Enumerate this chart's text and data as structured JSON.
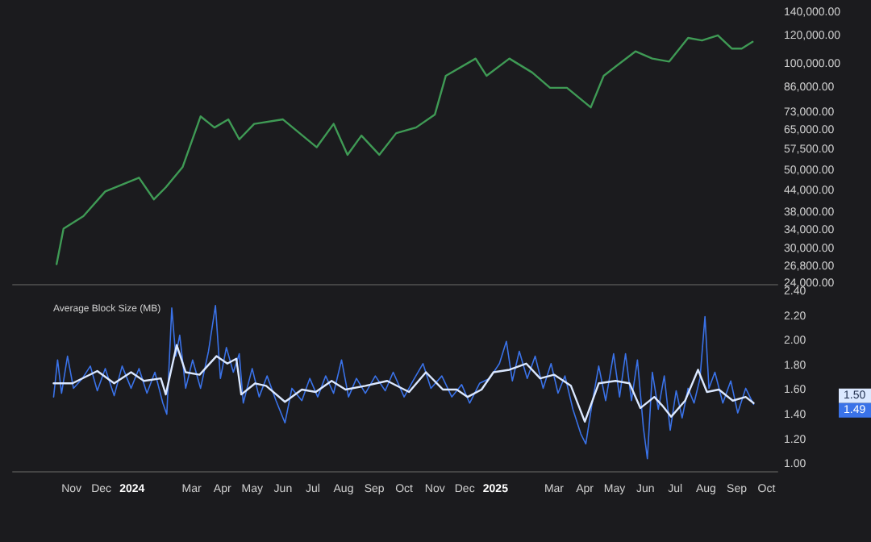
{
  "chart_data": [
    {
      "type": "line",
      "xlim": [
        "2023-09-03",
        "2025-10-12"
      ],
      "ylim": [
        24000,
        140000
      ],
      "log": "y",
      "tick_labels": "y",
      "grid": false,
      "yticks": [
        {
          "value": 140000,
          "label": "140,000.00"
        },
        {
          "value": 120000,
          "label": "120,000.00"
        },
        {
          "value": 100000,
          "label": "100,000.00"
        },
        {
          "value": 86000,
          "label": "86,000.00"
        },
        {
          "value": 73000,
          "label": "73,000.00"
        },
        {
          "value": 65000,
          "label": "65,000.00"
        },
        {
          "value": 57500,
          "label": "57,500.00"
        },
        {
          "value": 50000,
          "label": "50,000.00"
        },
        {
          "value": 44000,
          "label": "44,000.00"
        },
        {
          "value": 38000,
          "label": "38,000.00"
        },
        {
          "value": 34000,
          "label": "34,000.00"
        },
        {
          "value": 30000,
          "label": "30,000.00"
        },
        {
          "value": 26800,
          "label": "26,800.00"
        },
        {
          "value": 24000,
          "label": "24,000.00"
        }
      ],
      "series": [
        {
          "color": "#3f9a55",
          "x": [
            "2023-10-17",
            "2023-10-24",
            "2023-11-13",
            "2023-12-05",
            "2024-01-08",
            "2024-01-23",
            "2024-02-04",
            "2024-02-21",
            "2024-03-10",
            "2024-03-24",
            "2024-04-07",
            "2024-04-18",
            "2024-05-03",
            "2024-06-01",
            "2024-07-05",
            "2024-07-22",
            "2024-08-05",
            "2024-08-19",
            "2024-09-06",
            "2024-09-23",
            "2024-10-13",
            "2024-11-01",
            "2024-11-12",
            "2024-12-12",
            "2024-12-23",
            "2025-01-15",
            "2025-02-07",
            "2025-02-25",
            "2025-03-14",
            "2025-04-07",
            "2025-04-20",
            "2025-05-22",
            "2025-06-08",
            "2025-06-25",
            "2025-07-14",
            "2025-07-28",
            "2025-08-13",
            "2025-08-27",
            "2025-09-06",
            "2025-09-17"
          ],
          "values": [
            27300,
            34400,
            37300,
            43800,
            47900,
            41600,
            45000,
            51400,
            71400,
            66400,
            70000,
            61500,
            68000,
            70000,
            58400,
            68000,
            55600,
            63000,
            55600,
            64000,
            66400,
            72300,
            93000,
            104000,
            93000,
            104000,
            95000,
            86000,
            86000,
            75700,
            93000,
            109000,
            104000,
            102000,
            119000,
            117000,
            121000,
            111000,
            111000,
            116000
          ]
        }
      ]
    },
    {
      "type": "line",
      "title": "Average Block Size (MB)",
      "xlim": [
        "2023-09-03",
        "2025-10-12"
      ],
      "ylim": [
        0.95,
        2.4
      ],
      "grid": false,
      "xticks": [
        {
          "value": "2023-11-01",
          "label": "Nov"
        },
        {
          "value": "2023-12-01",
          "label": "Dec"
        },
        {
          "value": "2024-01-01",
          "label": "2024"
        },
        {
          "value": "2024-03-01",
          "label": "Mar"
        },
        {
          "value": "2024-04-01",
          "label": "Apr"
        },
        {
          "value": "2024-05-01",
          "label": "May"
        },
        {
          "value": "2024-06-01",
          "label": "Jun"
        },
        {
          "value": "2024-07-01",
          "label": "Jul"
        },
        {
          "value": "2024-08-01",
          "label": "Aug"
        },
        {
          "value": "2024-09-01",
          "label": "Sep"
        },
        {
          "value": "2024-10-01",
          "label": "Oct"
        },
        {
          "value": "2024-11-01",
          "label": "Nov"
        },
        {
          "value": "2024-12-01",
          "label": "Dec"
        },
        {
          "value": "2025-01-01",
          "label": "2025"
        },
        {
          "value": "2025-03-01",
          "label": "Mar"
        },
        {
          "value": "2025-04-01",
          "label": "Apr"
        },
        {
          "value": "2025-05-01",
          "label": "May"
        },
        {
          "value": "2025-06-01",
          "label": "Jun"
        },
        {
          "value": "2025-07-01",
          "label": "Jul"
        },
        {
          "value": "2025-08-01",
          "label": "Aug"
        },
        {
          "value": "2025-09-01",
          "label": "Sep"
        },
        {
          "value": "2025-10-01",
          "label": "Oct"
        }
      ],
      "yticks": [
        {
          "value": 2.4,
          "label": "2.40"
        },
        {
          "value": 2.2,
          "label": "2.20"
        },
        {
          "value": 2.0,
          "label": "2.00"
        },
        {
          "value": 1.8,
          "label": "1.80"
        },
        {
          "value": 1.6,
          "label": "1.60"
        },
        {
          "value": 1.4,
          "label": "1.40"
        },
        {
          "value": 1.2,
          "label": "1.20"
        },
        {
          "value": 1.0,
          "label": "1.00"
        }
      ],
      "annotations": [
        "1.50",
        "1.49"
      ],
      "series": [
        {
          "color": "#dbe8ff",
          "x": [
            "2023-10-14",
            "2023-11-02",
            "2023-11-27",
            "2023-12-14",
            "2023-12-31",
            "2024-01-13",
            "2024-01-30",
            "2024-02-04",
            "2024-02-15",
            "2024-02-24",
            "2024-03-09",
            "2024-03-26",
            "2024-04-06",
            "2024-04-15",
            "2024-04-20",
            "2024-05-04",
            "2024-05-15",
            "2024-06-03",
            "2024-06-20",
            "2024-07-04",
            "2024-07-20",
            "2024-08-03",
            "2024-08-23",
            "2024-09-14",
            "2024-10-06",
            "2024-10-23",
            "2024-11-09",
            "2024-11-23",
            "2024-12-04",
            "2024-12-18",
            "2024-12-30",
            "2025-01-15",
            "2025-02-01",
            "2025-02-15",
            "2025-03-01",
            "2025-03-18",
            "2025-04-01",
            "2025-04-15",
            "2025-05-02",
            "2025-05-16",
            "2025-05-27",
            "2025-06-10",
            "2025-06-18",
            "2025-06-27",
            "2025-07-11",
            "2025-07-24",
            "2025-08-02",
            "2025-08-14",
            "2025-08-28",
            "2025-09-10",
            "2025-09-18"
          ],
          "values": [
            1.66,
            1.66,
            1.76,
            1.66,
            1.75,
            1.68,
            1.7,
            1.57,
            1.97,
            1.75,
            1.73,
            1.88,
            1.82,
            1.86,
            1.57,
            1.66,
            1.64,
            1.51,
            1.61,
            1.59,
            1.68,
            1.61,
            1.64,
            1.68,
            1.59,
            1.75,
            1.61,
            1.61,
            1.55,
            1.61,
            1.75,
            1.77,
            1.82,
            1.7,
            1.73,
            1.64,
            1.35,
            1.66,
            1.68,
            1.66,
            1.46,
            1.55,
            1.48,
            1.39,
            1.52,
            1.77,
            1.59,
            1.61,
            1.52,
            1.55,
            1.5
          ]
        },
        {
          "color": "#3a72e8",
          "x": [
            "2023-10-14",
            "2023-10-18",
            "2023-10-22",
            "2023-10-28",
            "2023-11-03",
            "2023-11-12",
            "2023-11-20",
            "2023-11-27",
            "2023-12-05",
            "2023-12-14",
            "2023-12-22",
            "2023-12-31",
            "2024-01-08",
            "2024-01-16",
            "2024-01-24",
            "2024-02-01",
            "2024-02-05",
            "2024-02-10",
            "2024-02-14",
            "2024-02-18",
            "2024-02-24",
            "2024-03-02",
            "2024-03-10",
            "2024-03-18",
            "2024-03-25",
            "2024-03-30",
            "2024-04-05",
            "2024-04-12",
            "2024-04-18",
            "2024-04-22",
            "2024-05-01",
            "2024-05-08",
            "2024-05-16",
            "2024-05-25",
            "2024-06-03",
            "2024-06-10",
            "2024-06-20",
            "2024-06-28",
            "2024-07-06",
            "2024-07-14",
            "2024-07-22",
            "2024-07-30",
            "2024-08-06",
            "2024-08-14",
            "2024-08-23",
            "2024-09-02",
            "2024-09-12",
            "2024-09-20",
            "2024-10-01",
            "2024-10-10",
            "2024-10-20",
            "2024-10-28",
            "2024-11-08",
            "2024-11-18",
            "2024-11-28",
            "2024-12-06",
            "2024-12-16",
            "2024-12-26",
            "2025-01-05",
            "2025-01-12",
            "2025-01-18",
            "2025-01-25",
            "2025-02-02",
            "2025-02-10",
            "2025-02-18",
            "2025-02-26",
            "2025-03-05",
            "2025-03-12",
            "2025-03-20",
            "2025-03-28",
            "2025-04-02",
            "2025-04-08",
            "2025-04-15",
            "2025-04-22",
            "2025-04-30",
            "2025-05-06",
            "2025-05-12",
            "2025-05-18",
            "2025-05-24",
            "2025-05-30",
            "2025-06-03",
            "2025-06-08",
            "2025-06-14",
            "2025-06-20",
            "2025-06-26",
            "2025-07-02",
            "2025-07-08",
            "2025-07-14",
            "2025-07-20",
            "2025-07-26",
            "2025-07-31",
            "2025-08-04",
            "2025-08-10",
            "2025-08-18",
            "2025-08-26",
            "2025-09-02",
            "2025-09-10",
            "2025-09-18"
          ],
          "values": [
            1.55,
            1.85,
            1.58,
            1.88,
            1.62,
            1.7,
            1.8,
            1.6,
            1.78,
            1.56,
            1.8,
            1.62,
            1.78,
            1.58,
            1.75,
            1.5,
            1.41,
            2.27,
            1.88,
            2.05,
            1.62,
            1.85,
            1.62,
            1.92,
            2.29,
            1.7,
            1.95,
            1.75,
            1.9,
            1.5,
            1.78,
            1.55,
            1.72,
            1.52,
            1.34,
            1.62,
            1.52,
            1.7,
            1.55,
            1.72,
            1.58,
            1.85,
            1.55,
            1.7,
            1.58,
            1.72,
            1.6,
            1.75,
            1.55,
            1.68,
            1.82,
            1.62,
            1.72,
            1.55,
            1.65,
            1.5,
            1.66,
            1.7,
            1.82,
            2.0,
            1.68,
            1.92,
            1.7,
            1.88,
            1.62,
            1.82,
            1.58,
            1.72,
            1.45,
            1.25,
            1.17,
            1.48,
            1.8,
            1.52,
            1.9,
            1.55,
            1.9,
            1.52,
            1.85,
            1.3,
            1.05,
            1.75,
            1.45,
            1.72,
            1.28,
            1.6,
            1.38,
            1.62,
            1.5,
            1.7,
            2.2,
            1.62,
            1.75,
            1.5,
            1.68,
            1.42,
            1.62,
            1.49
          ]
        }
      ]
    }
  ]
}
